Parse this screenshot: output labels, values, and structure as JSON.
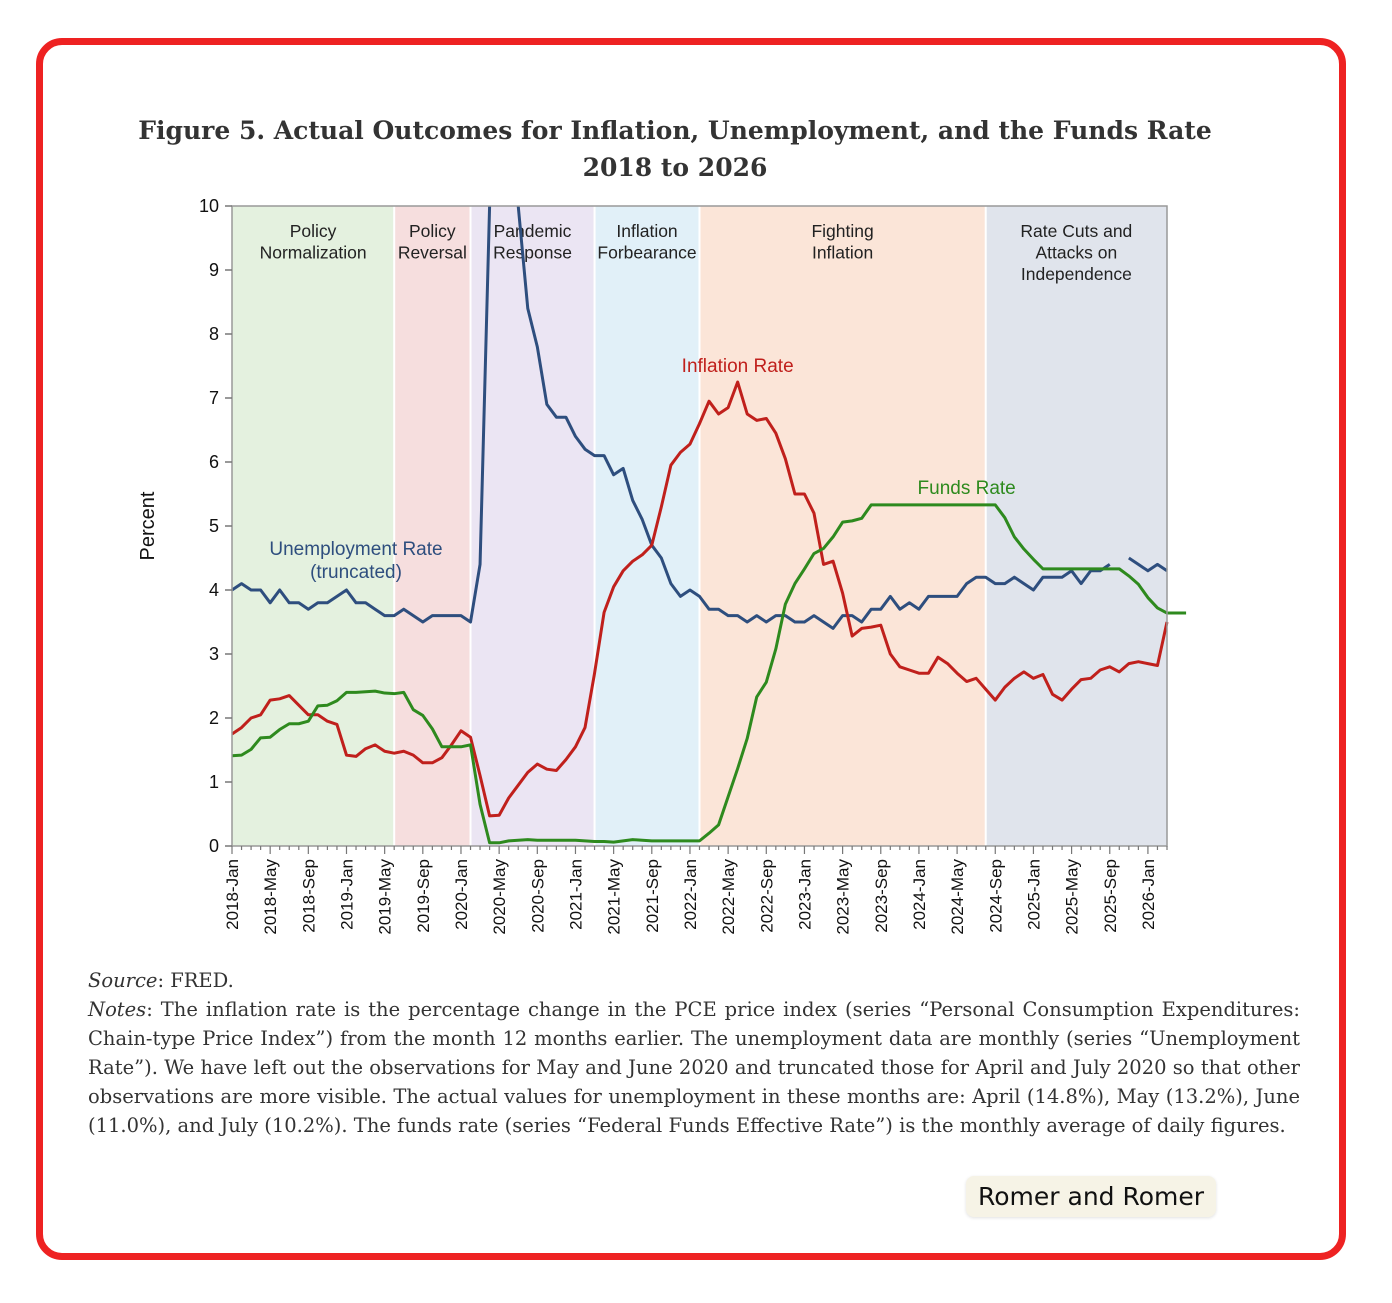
{
  "figure": {
    "title_line1": "Figure 5. Actual Outcomes for Inflation, Unemployment, and the Funds Rate",
    "title_line2": "2018 to 2026"
  },
  "chart_data": {
    "type": "line",
    "ylabel": "Percent",
    "xlabel": "",
    "ylim": [
      0,
      10
    ],
    "yticks": [
      0,
      1,
      2,
      3,
      4,
      5,
      6,
      7,
      8,
      9,
      10
    ],
    "x_start": "2018-01",
    "x_end": "2026-03",
    "xtick_labels": [
      "2018-Jan",
      "2018-May",
      "2018-Sep",
      "2019-Jan",
      "2019-May",
      "2019-Sep",
      "2020-Jan",
      "2020-May",
      "2020-Sep",
      "2021-Jan",
      "2021-May",
      "2021-Sep",
      "2022-Jan",
      "2022-May",
      "2022-Sep",
      "2023-Jan",
      "2023-May",
      "2023-Sep",
      "2024-Jan",
      "2024-May",
      "2024-Sep",
      "2025-Jan",
      "2025-May",
      "2025-Sep",
      "2026-Jan"
    ],
    "grid": false,
    "periods": [
      {
        "lines": [
          "Policy",
          "Normalization"
        ],
        "start": "2018-01",
        "end": "2019-06",
        "color": "#e4f1df"
      },
      {
        "lines": [
          "Policy",
          "Reversal"
        ],
        "start": "2019-06",
        "end": "2020-02",
        "color": "#f6dede"
      },
      {
        "lines": [
          "Pandemic",
          "Response"
        ],
        "start": "2020-02",
        "end": "2021-03",
        "color": "#ebe5f3"
      },
      {
        "lines": [
          "Inflation",
          "Forbearance"
        ],
        "start": "2021-03",
        "end": "2022-02",
        "color": "#e1f0f8"
      },
      {
        "lines": [
          "Fighting",
          "Inflation"
        ],
        "start": "2022-02",
        "end": "2024-08",
        "color": "#fbe5d8"
      },
      {
        "lines": [
          "Rate Cuts and",
          "Attacks on",
          "Independence"
        ],
        "start": "2024-08",
        "end": "2026-03",
        "color": "#e0e4ec"
      }
    ],
    "series": [
      {
        "name": "Inflation Rate",
        "color": "#c0201c",
        "start": "2018-01",
        "values": [
          1.75,
          1.85,
          2.0,
          2.05,
          2.28,
          2.3,
          2.35,
          2.2,
          2.05,
          2.05,
          1.95,
          1.9,
          1.42,
          1.4,
          1.52,
          1.58,
          1.48,
          1.45,
          1.48,
          1.42,
          1.3,
          1.3,
          1.38,
          1.58,
          1.8,
          1.7,
          1.1,
          0.47,
          0.48,
          0.75,
          0.95,
          1.15,
          1.28,
          1.2,
          1.18,
          1.35,
          1.55,
          1.85,
          2.7,
          3.65,
          4.05,
          4.3,
          4.45,
          4.55,
          4.7,
          5.3,
          5.95,
          6.15,
          6.28,
          6.6,
          6.95,
          6.75,
          6.85,
          7.25,
          6.75,
          6.65,
          6.68,
          6.45,
          6.05,
          5.5,
          5.5,
          5.2,
          4.4,
          4.45,
          3.95,
          3.28,
          3.4,
          3.42,
          3.45,
          3.0,
          2.8,
          2.75,
          2.7,
          2.7,
          2.95,
          2.85,
          2.7,
          2.57,
          2.62,
          2.45,
          2.28,
          2.48,
          2.62,
          2.72,
          2.62,
          2.68,
          2.37,
          2.28,
          2.45,
          2.6,
          2.62,
          2.75,
          2.8,
          2.72,
          2.85,
          2.88,
          2.85,
          2.82,
          3.5
        ]
      },
      {
        "name": "Unemployment Rate",
        "label_lines": [
          "Unemployment Rate",
          "(truncated)"
        ],
        "color": "#2e4e7e",
        "start": "2018-01",
        "values": [
          4.0,
          4.1,
          4.0,
          4.0,
          3.8,
          4.0,
          3.8,
          3.8,
          3.7,
          3.8,
          3.8,
          3.9,
          4.0,
          3.8,
          3.8,
          3.7,
          3.6,
          3.6,
          3.7,
          3.6,
          3.5,
          3.6,
          3.6,
          3.6,
          3.6,
          3.5,
          4.4,
          10.0,
          null,
          null,
          10.0,
          8.4,
          7.8,
          6.9,
          6.7,
          6.7,
          6.4,
          6.2,
          6.1,
          6.1,
          5.8,
          5.9,
          5.4,
          5.1,
          4.7,
          4.5,
          4.1,
          3.9,
          4.0,
          3.9,
          3.7,
          3.7,
          3.6,
          3.6,
          3.5,
          3.6,
          3.5,
          3.6,
          3.6,
          3.5,
          3.5,
          3.6,
          3.5,
          3.4,
          3.6,
          3.6,
          3.5,
          3.7,
          3.7,
          3.9,
          3.7,
          3.8,
          3.7,
          3.9,
          3.9,
          3.9,
          3.9,
          4.1,
          4.2,
          4.2,
          4.1,
          4.1,
          4.2,
          4.1,
          4.0,
          4.2,
          4.2,
          4.2,
          4.3,
          4.1,
          4.3,
          4.3,
          4.4,
          null,
          4.5,
          4.4,
          4.3,
          4.4,
          4.3
        ]
      },
      {
        "name": "Funds Rate",
        "color": "#2e8a1e",
        "start": "2018-01",
        "values": [
          1.41,
          1.42,
          1.51,
          1.69,
          1.7,
          1.82,
          1.91,
          1.91,
          1.95,
          2.19,
          2.2,
          2.27,
          2.4,
          2.4,
          2.41,
          2.42,
          2.39,
          2.38,
          2.4,
          2.13,
          2.04,
          1.83,
          1.55,
          1.55,
          1.55,
          1.58,
          0.65,
          0.05,
          0.05,
          0.08,
          0.09,
          0.1,
          0.09,
          0.09,
          0.09,
          0.09,
          0.09,
          0.08,
          0.07,
          0.07,
          0.06,
          0.08,
          0.1,
          0.09,
          0.08,
          0.08,
          0.08,
          0.08,
          0.08,
          0.08,
          0.2,
          0.33,
          0.77,
          1.21,
          1.68,
          2.33,
          2.56,
          3.08,
          3.78,
          4.1,
          4.33,
          4.57,
          4.65,
          4.83,
          5.06,
          5.08,
          5.12,
          5.33,
          5.33,
          5.33,
          5.33,
          5.33,
          5.33,
          5.33,
          5.33,
          5.33,
          5.33,
          5.33,
          5.33,
          5.33,
          5.33,
          5.13,
          4.83,
          4.64,
          4.48,
          4.33,
          4.33,
          4.33,
          4.33,
          4.33,
          4.33,
          4.33,
          4.33,
          4.33,
          4.22,
          4.09,
          3.88,
          3.72,
          3.64,
          3.64,
          3.64
        ]
      }
    ]
  },
  "notes": {
    "source_label": "Source",
    "source_text": ": FRED.",
    "notes_label": "Notes",
    "notes_text": ": The inflation rate is the percentage change in the PCE price index (series “Personal Consumption Expenditures: Chain-type Price Index”) from the month 12 months earlier. The unemployment data are monthly (series “Unemployment Rate”). We have left out the observations for May and June 2020 and truncated those for April and July 2020 so that other observations are more visible. The actual values for unemployment in these months are: April (14.8%), May (13.2%), June (11.0%), and July (10.2%). The funds rate (series “Federal Funds Effective Rate”) is the monthly average of daily figures."
  },
  "credit": "Romer and Romer"
}
